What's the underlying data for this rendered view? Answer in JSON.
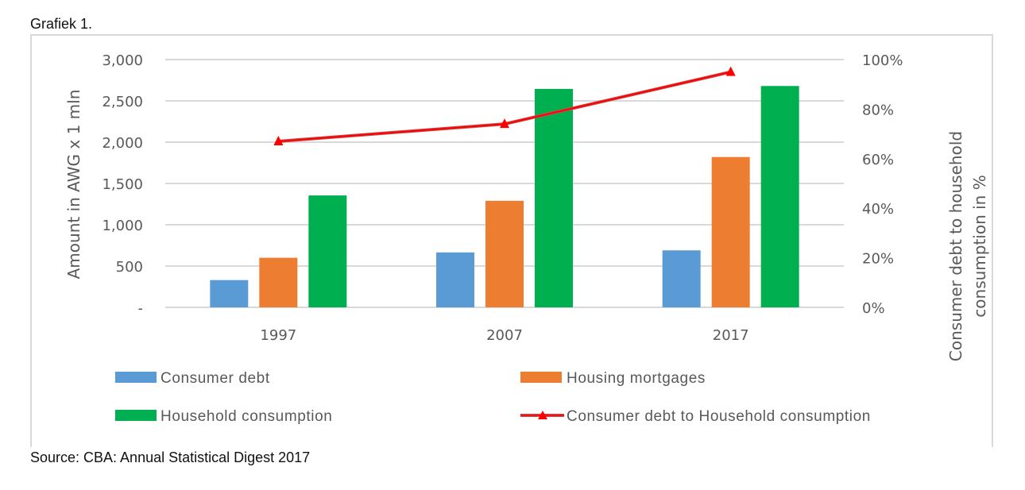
{
  "figure": {
    "title": "Grafiek 1.",
    "source": "Source: CBA: Annual Statistical Digest 2017"
  },
  "chart_data": {
    "type": "bar",
    "combo": "bar + line (secondary axis)",
    "categories": [
      "1997",
      "2007",
      "2017"
    ],
    "series": [
      {
        "name": "Consumer debt",
        "type": "bar",
        "axis": "left",
        "color": "#5b9bd5",
        "values": [
          330,
          665,
          690
        ]
      },
      {
        "name": "Housing mortgages",
        "type": "bar",
        "axis": "left",
        "color": "#ed7d31",
        "values": [
          600,
          1290,
          1820
        ]
      },
      {
        "name": "Household consumption",
        "type": "bar",
        "axis": "left",
        "color": "#00b050",
        "values": [
          1355,
          2645,
          2680
        ]
      },
      {
        "name": "Consumer debt to Household consumption",
        "type": "line",
        "axis": "right",
        "color": "#ff0000",
        "marker": "triangle",
        "values": [
          67,
          74,
          95
        ]
      }
    ],
    "ylabel": "Amount in AWG x 1 mln",
    "ylim": [
      0,
      3000
    ],
    "yticks": [
      "-",
      "500",
      "1,000",
      "1,500",
      "2,000",
      "2,500",
      "3,000"
    ],
    "y2label": "Consumer debt to household consumption in  %",
    "y2lim": [
      0,
      100
    ],
    "y2ticks": [
      "0%",
      "20%",
      "40%",
      "60%",
      "80%",
      "100%"
    ],
    "grid": true,
    "legend_position": "bottom"
  },
  "axes": {
    "left_label": "Amount in AWG x 1 mln",
    "right_label_line1": "Consumer debt to household",
    "right_label_line2": "consumption in  %"
  },
  "legend": {
    "consumer_debt": "Consumer debt",
    "housing_mortgages": "Housing mortgages",
    "household_consumption": "Household consumption",
    "ratio": "Consumer debt to Household consumption"
  }
}
